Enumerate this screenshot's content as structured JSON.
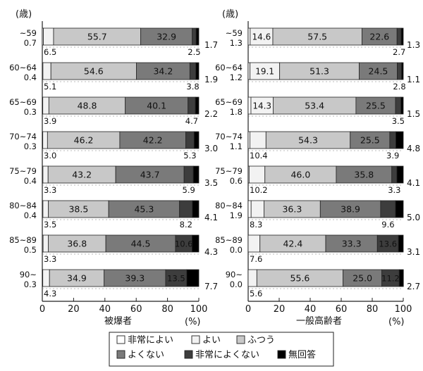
{
  "colors": {
    "非常によい": "#ffffff",
    "よい": "#f2f2f2",
    "ふつう": "#c8c8c8",
    "よくない": "#7a7a7a",
    "非常によくない": "#3d3d3d",
    "無回答": "#000000"
  },
  "chart_data": [
    {
      "type": "bar",
      "stacked": true,
      "orientation": "horizontal",
      "title": "",
      "xlabel": "被爆者",
      "ylabel": "(歳)",
      "x_unit": "(%)",
      "xlim": [
        0,
        100
      ],
      "xticks": [
        "0",
        "20",
        "40",
        "60",
        "80",
        "100"
      ],
      "legend_position": "bottom",
      "grid": false,
      "categories": [
        "~59",
        "60~64",
        "65~69",
        "70~74",
        "75~79",
        "80~84",
        "85~89",
        "90~"
      ],
      "series": [
        {
          "name": "非常によい",
          "values": [
            0.7,
            0.4,
            0.3,
            0.3,
            0.4,
            0.4,
            0.5,
            0.3
          ]
        },
        {
          "name": "よい",
          "values": [
            6.5,
            5.1,
            3.9,
            3.0,
            3.3,
            3.5,
            3.3,
            4.3
          ]
        },
        {
          "name": "ふつう",
          "values": [
            55.7,
            54.6,
            48.8,
            46.2,
            43.2,
            38.5,
            36.8,
            34.9
          ]
        },
        {
          "name": "よくない",
          "values": [
            32.9,
            34.2,
            40.1,
            42.2,
            43.7,
            45.3,
            44.5,
            39.3
          ]
        },
        {
          "name": "非常によくない",
          "values": [
            2.5,
            3.8,
            4.7,
            5.3,
            5.9,
            8.2,
            10.6,
            13.5
          ]
        },
        {
          "name": "無回答",
          "values": [
            1.7,
            1.9,
            2.2,
            3.0,
            3.5,
            4.1,
            4.3,
            7.7
          ]
        }
      ]
    },
    {
      "type": "bar",
      "stacked": true,
      "orientation": "horizontal",
      "title": "",
      "xlabel": "一般高齢者",
      "ylabel": "(歳)",
      "x_unit": "(%)",
      "xlim": [
        0,
        100
      ],
      "xticks": [
        "0",
        "20",
        "40",
        "60",
        "80",
        "100"
      ],
      "legend_position": "bottom",
      "grid": false,
      "categories": [
        "~59",
        "60~64",
        "65~69",
        "70~74",
        "75~79",
        "80~84",
        "85~89",
        "90~"
      ],
      "series": [
        {
          "name": "非常によい",
          "values": [
            1.3,
            1.2,
            1.8,
            1.1,
            0.6,
            1.9,
            0.0,
            0.0
          ]
        },
        {
          "name": "よい",
          "values": [
            14.6,
            19.1,
            14.3,
            10.4,
            10.2,
            8.3,
            7.6,
            5.6
          ]
        },
        {
          "name": "ふつう",
          "values": [
            57.5,
            51.3,
            53.4,
            54.3,
            46.0,
            36.3,
            42.4,
            55.6
          ]
        },
        {
          "name": "よくない",
          "values": [
            22.6,
            24.5,
            25.5,
            25.5,
            35.8,
            38.9,
            33.3,
            25.0
          ]
        },
        {
          "name": "非常によくない",
          "values": [
            2.7,
            2.8,
            3.5,
            3.9,
            3.3,
            9.6,
            13.6,
            11.2
          ]
        },
        {
          "name": "無回答",
          "values": [
            1.3,
            1.1,
            1.5,
            4.8,
            4.1,
            5.0,
            3.1,
            2.7
          ]
        }
      ]
    }
  ],
  "legend": {
    "items": [
      "非常によい",
      "よい",
      "ふつう",
      "よくない",
      "非常によくない",
      "無回答"
    ]
  }
}
